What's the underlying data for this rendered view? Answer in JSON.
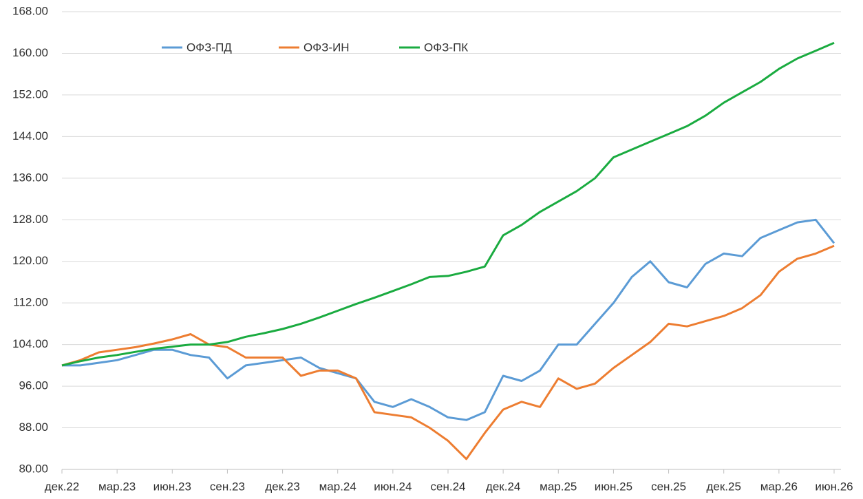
{
  "chart_data": {
    "type": "line",
    "categories": [
      "дек.22",
      null,
      null,
      "мар.23",
      null,
      null,
      "июн.23",
      null,
      null,
      "сен.23",
      null,
      null,
      "дек.23",
      null,
      null,
      "мар.24",
      null,
      null,
      "июн.24",
      null,
      null,
      "сен.24",
      null,
      null,
      "дек.24",
      null,
      null,
      "мар.25",
      null,
      null,
      "июн.25",
      null,
      null,
      "сен.25",
      null,
      null,
      "дек.25",
      null,
      null,
      "мар.26",
      null,
      null,
      "июн.26"
    ],
    "series": [
      {
        "name": "ОФЗ-ПД",
        "color": "#5b9bd5",
        "values": [
          100,
          100,
          100.5,
          101,
          102,
          103,
          103,
          102,
          101.5,
          97.5,
          100,
          100.5,
          101,
          101.5,
          99.5,
          98.5,
          97.5,
          93,
          92,
          93.5,
          92,
          90,
          89.5,
          91,
          98,
          97,
          99,
          104,
          104,
          108,
          112,
          117,
          120,
          116,
          115,
          119.5,
          121.5,
          121,
          124.5,
          126,
          127.5,
          128,
          123.5
        ]
      },
      {
        "name": "ОФЗ-ИН",
        "color": "#ed7d31",
        "values": [
          100,
          101,
          102.5,
          103,
          103.5,
          104.2,
          105,
          106,
          104,
          103.5,
          101.5,
          101.5,
          101.5,
          98,
          99,
          99,
          97.5,
          91,
          90.5,
          90,
          88,
          85.5,
          82,
          87,
          91.5,
          93,
          92,
          97.5,
          95.5,
          96.5,
          99.5,
          102,
          104.5,
          108,
          107.5,
          108.5,
          109.5,
          111,
          113.5,
          118,
          120.5,
          121.5,
          123
        ]
      },
      {
        "name": "ОФЗ-ПК",
        "color": "#1aab40",
        "values": [
          100,
          100.8,
          101.5,
          102,
          102.6,
          103.2,
          103.6,
          104,
          104,
          104.5,
          105.5,
          106.2,
          107,
          108,
          109.2,
          110.5,
          111.8,
          113,
          114.3,
          115.6,
          117,
          117.2,
          118,
          119,
          125,
          127,
          129.5,
          131.5,
          133.5,
          136,
          140,
          141.5,
          143,
          144.5,
          146,
          148,
          150.5,
          152.5,
          154.5,
          157,
          159,
          160.5,
          162
        ]
      }
    ],
    "ylim": [
      80,
      168
    ],
    "yticks": [
      {
        "value": 80,
        "label": "80.00"
      },
      {
        "value": 88,
        "label": "88.00"
      },
      {
        "value": 96,
        "label": "96.00"
      },
      {
        "value": 104,
        "label": "104.00"
      },
      {
        "value": 112,
        "label": "112.00"
      },
      {
        "value": 120,
        "label": "120.00"
      },
      {
        "value": 128,
        "label": "128.00"
      },
      {
        "value": 136,
        "label": "136.00"
      },
      {
        "value": 144,
        "label": "144.00"
      },
      {
        "value": 152,
        "label": "152.00"
      },
      {
        "value": 160,
        "label": "160.00"
      },
      {
        "value": 168,
        "label": "168.00"
      }
    ],
    "grid": true,
    "legend": "top"
  }
}
